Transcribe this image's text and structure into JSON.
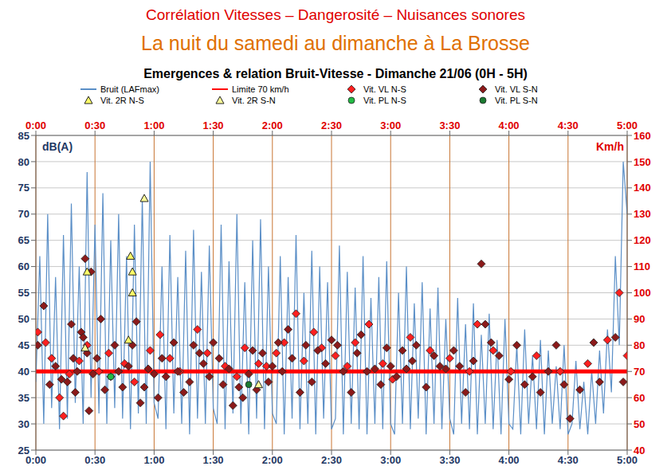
{
  "chart_data": {
    "type": "combo",
    "heading": "Corrélation Vitesses – Dangerosité – Nuisances sonores",
    "subheading": "La nuit du samedi au dimanche à La Brosse",
    "title": "Emergences & relation Bruit-Vitesse - Dimanche 21/06 (0H - 5H)",
    "y_label": "dB(A)",
    "y2_label": "Km/h",
    "xlim": [
      0,
      300
    ],
    "xticks": [
      {
        "value": 0,
        "label": "0:00"
      },
      {
        "value": 30,
        "label": "0:30"
      },
      {
        "value": 60,
        "label": "1:00"
      },
      {
        "value": 90,
        "label": "1:30"
      },
      {
        "value": 120,
        "label": "2:00"
      },
      {
        "value": 150,
        "label": "2:30"
      },
      {
        "value": 180,
        "label": "3:00"
      },
      {
        "value": 210,
        "label": "3:30"
      },
      {
        "value": 240,
        "label": "4:00"
      },
      {
        "value": 270,
        "label": "4:30"
      },
      {
        "value": 300,
        "label": "5:00"
      }
    ],
    "ylim": [
      25,
      85
    ],
    "yticks": [
      25,
      30,
      35,
      40,
      45,
      50,
      55,
      60,
      65,
      70,
      75,
      80,
      85
    ],
    "y2lim": [
      40,
      160
    ],
    "y2ticks": [
      40,
      50,
      60,
      70,
      80,
      90,
      100,
      110,
      120,
      130,
      140,
      150,
      160
    ],
    "grid": true,
    "legend": "top",
    "series": [
      {
        "name": "Bruit (LAFmax)",
        "type": "line",
        "color": "#5b8fc7",
        "marker": "line",
        "axis": "y",
        "x": [
          0,
          2,
          4,
          6,
          8,
          10,
          12,
          14,
          16,
          18,
          20,
          22,
          24,
          26,
          28,
          30,
          32,
          34,
          36,
          38,
          40,
          42,
          44,
          46,
          48,
          50,
          52,
          54,
          56,
          58,
          60,
          62,
          64,
          66,
          68,
          70,
          72,
          74,
          76,
          78,
          80,
          82,
          84,
          86,
          88,
          90,
          92,
          94,
          96,
          98,
          100,
          102,
          104,
          106,
          108,
          110,
          112,
          114,
          116,
          118,
          120,
          122,
          124,
          126,
          128,
          130,
          132,
          134,
          136,
          138,
          140,
          142,
          144,
          146,
          148,
          150,
          152,
          154,
          156,
          158,
          160,
          162,
          164,
          166,
          168,
          170,
          172,
          174,
          176,
          178,
          180,
          182,
          184,
          186,
          188,
          190,
          192,
          194,
          196,
          198,
          200,
          202,
          204,
          206,
          208,
          210,
          212,
          214,
          216,
          218,
          220,
          222,
          224,
          226,
          228,
          230,
          232,
          234,
          236,
          238,
          240,
          242,
          244,
          246,
          248,
          250,
          252,
          254,
          256,
          258,
          260,
          262,
          264,
          266,
          268,
          270,
          272,
          274,
          276,
          278,
          280,
          282,
          284,
          286,
          288,
          290,
          292,
          294,
          296,
          298,
          300
        ],
        "values": [
          38,
          62,
          30,
          70,
          33,
          58,
          29,
          66,
          31,
          72,
          34,
          60,
          30,
          78,
          35,
          68,
          32,
          74,
          30,
          65,
          33,
          70,
          31,
          62,
          29,
          68,
          32,
          73,
          30,
          80,
          34,
          31,
          60,
          29,
          66,
          32,
          58,
          30,
          63,
          28,
          67,
          31,
          59,
          30,
          64,
          33,
          30,
          68,
          29,
          61,
          32,
          70,
          30,
          57,
          28,
          65,
          31,
          69,
          29,
          60,
          32,
          30,
          62,
          28,
          58,
          31,
          66,
          29,
          55,
          30,
          63,
          28,
          60,
          31,
          57,
          29,
          31,
          64,
          28,
          59,
          30,
          56,
          29,
          62,
          28,
          54,
          30,
          58,
          29,
          61,
          30,
          28,
          55,
          30,
          60,
          29,
          53,
          31,
          57,
          28,
          52,
          30,
          56,
          29,
          50,
          31,
          28,
          54,
          30,
          49,
          29,
          53,
          28,
          47,
          30,
          51,
          29,
          46,
          28,
          50,
          30,
          29,
          45,
          28,
          48,
          30,
          43,
          29,
          46,
          28,
          44,
          30,
          41,
          29,
          45,
          28,
          30,
          42,
          29,
          38,
          28,
          40,
          30,
          44,
          32,
          48,
          36,
          62,
          45,
          80,
          70
        ]
      },
      {
        "name": "Limite 70 km/h",
        "type": "line",
        "color": "#ff0000",
        "marker": "line",
        "line_style": "solid",
        "axis": "y2",
        "x": [
          0,
          300
        ],
        "values": [
          70,
          70
        ]
      },
      {
        "name": "Vit. VL N-S",
        "type": "scatter",
        "color": "#ff2020",
        "marker": "diamond",
        "axis": "y2",
        "x": [
          1,
          5,
          8,
          12,
          14,
          17,
          22,
          26,
          32,
          37,
          45,
          50,
          58,
          63,
          68,
          73,
          82,
          87,
          96,
          102,
          106,
          113,
          117,
          122,
          126,
          132,
          136,
          141,
          145,
          152,
          158,
          162,
          169,
          176,
          181,
          190,
          200,
          210,
          220,
          224,
          232,
          241,
          254,
          266,
          280,
          290,
          296,
          300
        ],
        "values": [
          85,
          81,
          75,
          60,
          53,
          69,
          74,
          80,
          70,
          77,
          73,
          66,
          78,
          84,
          75,
          70,
          86,
          77,
          72,
          68,
          79,
          73,
          72,
          77,
          81,
          92,
          74,
          85,
          79,
          76,
          72,
          81,
          88,
          73,
          67,
          83,
          78,
          75,
          70,
          88,
          78,
          70,
          76,
          70,
          73,
          82,
          100,
          76
        ]
      },
      {
        "name": "Vit. VL S-N",
        "type": "scatter",
        "color": "#8b1a1a",
        "marker": "diamond",
        "axis": "y2",
        "x": [
          1,
          4,
          7,
          10,
          13,
          16,
          18,
          19,
          20,
          21,
          23,
          24,
          25,
          26,
          27,
          28,
          29,
          31,
          33,
          35,
          38,
          40,
          42,
          44,
          47,
          49,
          51,
          53,
          55,
          57,
          60,
          62,
          64,
          66,
          70,
          72,
          75,
          78,
          80,
          83,
          85,
          88,
          90,
          93,
          95,
          98,
          100,
          103,
          105,
          108,
          110,
          112,
          115,
          118,
          120,
          123,
          125,
          128,
          130,
          134,
          137,
          140,
          143,
          147,
          150,
          153,
          156,
          160,
          163,
          165,
          168,
          172,
          175,
          178,
          180,
          183,
          186,
          188,
          191,
          193,
          198,
          202,
          205,
          208,
          212,
          215,
          218,
          222,
          226,
          228,
          231,
          235,
          240,
          244,
          248,
          252,
          256,
          260,
          264,
          268,
          271,
          276,
          283,
          286,
          294,
          298
        ],
        "values": [
          80,
          95,
          65,
          72,
          67,
          66,
          88,
          75,
          62,
          70,
          85,
          83,
          113,
          77,
          55,
          108,
          69,
          75,
          90,
          63,
          68,
          80,
          70,
          64,
          72,
          80,
          89,
          58,
          64,
          71,
          69,
          60,
          75,
          68,
          81,
          70,
          62,
          66,
          80,
          77,
          73,
          68,
          81,
          75,
          65,
          71,
          57,
          64,
          60,
          69,
          78,
          63,
          77,
          66,
          72,
          81,
          70,
          86,
          75,
          62,
          80,
          66,
          78,
          73,
          82,
          80,
          70,
          62,
          77,
          84,
          70,
          71,
          65,
          79,
          72,
          68,
          78,
          71,
          74,
          80,
          64,
          76,
          72,
          71,
          78,
          72,
          62,
          74,
          111,
          88,
          81,
          76,
          67,
          80,
          65,
          68,
          62,
          70,
          80,
          65,
          52,
          63,
          81,
          66,
          83,
          66
        ]
      },
      {
        "name": "Vit. 2R N-S",
        "type": "scatter",
        "color": "#ffff66",
        "marker": "triangle",
        "axis": "y2",
        "x": [
          26,
          48,
          49,
          49,
          47
        ],
        "values": [
          108,
          114,
          108,
          100,
          82
        ]
      },
      {
        "name": "Vit. 2R S-N",
        "type": "scatter",
        "color": "#ffff99",
        "marker": "triangle",
        "axis": "y2",
        "x": [
          25,
          55,
          113
        ],
        "values": [
          79,
          136,
          65
        ]
      },
      {
        "name": "Vit. PL N-S",
        "type": "scatter",
        "color": "#22bb44",
        "marker": "circle",
        "axis": "y2",
        "x": [
          38
        ],
        "values": [
          68
        ]
      },
      {
        "name": "Vit. PL S-N",
        "type": "scatter",
        "color": "#1a7a30",
        "marker": "circle",
        "axis": "y2",
        "x": [
          108
        ],
        "values": [
          65
        ]
      }
    ]
  }
}
